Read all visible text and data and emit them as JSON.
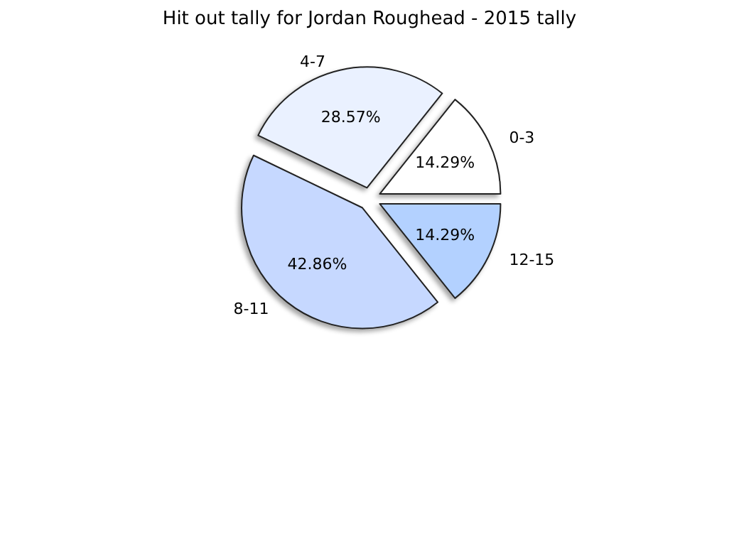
{
  "chart_data": {
    "type": "pie",
    "title": "Hit out tally for Jordan Roughead - 2015 tally",
    "categories": [
      "0-3",
      "4-7",
      "8-11",
      "12-15"
    ],
    "values": [
      14.29,
      28.57,
      42.86,
      14.29
    ],
    "colors": [
      "#ffffff",
      "#eaf1ff",
      "#c6d8ff",
      "#b3d1ff"
    ],
    "value_labels": [
      "14.29%",
      "28.57%",
      "42.86%",
      "14.29%"
    ],
    "legend": false
  }
}
